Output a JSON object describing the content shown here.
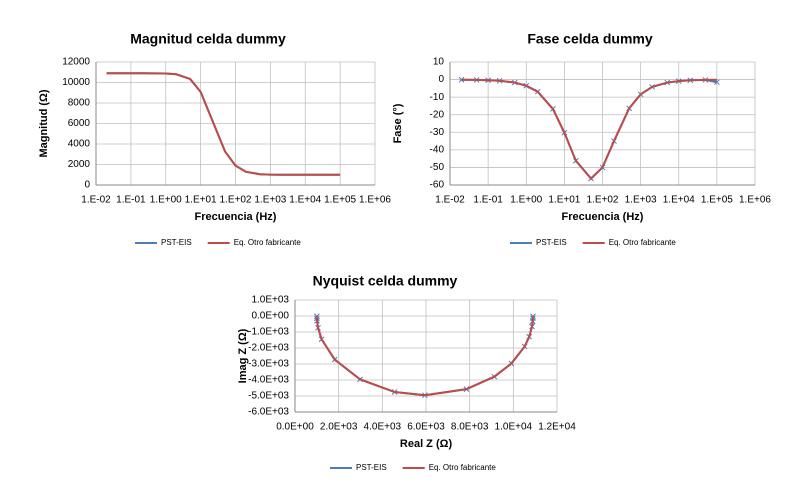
{
  "chart_data": [
    {
      "type": "line",
      "title": "Magnitud celda dummy",
      "xlabel": "Frecuencia (Hz)",
      "ylabel": "Magnitud (Ω)",
      "xscale": "log",
      "grid": true,
      "legend": "bottom",
      "x": [
        0.02,
        0.05,
        0.1,
        0.2,
        0.5,
        1,
        2,
        5,
        10,
        20,
        50,
        100,
        200,
        500,
        1000,
        2000,
        5000,
        10000,
        20000,
        50000,
        100000
      ],
      "series": [
        {
          "name": "PST-EIS",
          "color": "#4a7ebb",
          "values": [
            10900,
            10900,
            10900,
            10898,
            10894,
            10876,
            10805,
            10345,
            9086,
            6589,
            3275,
            1895,
            1288,
            1052,
            1013,
            1003,
            1000,
            1000,
            1000,
            1000,
            1000
          ]
        },
        {
          "name": "Eq. Otro fabricante",
          "color": "#be4b48",
          "values": [
            10900,
            10900,
            10900,
            10898,
            10894,
            10876,
            10805,
            10345,
            9086,
            6589,
            3275,
            1895,
            1288,
            1052,
            1013,
            1003,
            1000,
            1000,
            1000,
            1000,
            1000
          ]
        }
      ],
      "xlim": [
        0.01,
        1000000
      ],
      "xticks": [
        {
          "value": 0.01,
          "label": "1.E-02"
        },
        {
          "value": 0.1,
          "label": "1.E-01"
        },
        {
          "value": 1,
          "label": "1.E+00"
        },
        {
          "value": 10,
          "label": "1.E+01"
        },
        {
          "value": 100,
          "label": "1.E+02"
        },
        {
          "value": 1000,
          "label": "1.E+03"
        },
        {
          "value": 10000,
          "label": "1.E+04"
        },
        {
          "value": 100000,
          "label": "1.E+05"
        },
        {
          "value": 1000000,
          "label": "1.E+06"
        }
      ],
      "ylim": [
        0,
        12000
      ],
      "yticks": [
        0,
        2000,
        4000,
        6000,
        8000,
        10000,
        12000
      ]
    },
    {
      "type": "line",
      "title": "Fase celda dummy",
      "xlabel": "Frecuencia (Hz)",
      "ylabel": "Fase (°)",
      "xscale": "log",
      "grid": true,
      "legend": "bottom",
      "x": [
        0.02,
        0.05,
        0.1,
        0.2,
        0.5,
        1,
        2,
        5,
        10,
        20,
        50,
        100,
        200,
        500,
        1000,
        2000,
        5000,
        10000,
        20000,
        50000,
        100000
      ],
      "series": [
        {
          "name": "PST-EIS",
          "color": "#4a7ebb",
          "marker": "x",
          "values": [
            -0.1,
            -0.2,
            -0.4,
            -0.7,
            -1.7,
            -3.5,
            -6.9,
            -16.7,
            -30.2,
            -46.2,
            -56.3,
            -50,
            -35,
            -16.4,
            -8.4,
            -4.2,
            -1.7,
            -0.9,
            -0.4,
            -0.2,
            -1.5
          ]
        },
        {
          "name": "Eq. Otro fabricante",
          "color": "#be4b48",
          "values": [
            -0.1,
            -0.2,
            -0.4,
            -0.7,
            -1.7,
            -3.5,
            -6.9,
            -16.7,
            -30.2,
            -46.2,
            -56.3,
            -50,
            -35,
            -16.4,
            -8.4,
            -4.2,
            -1.7,
            -0.9,
            -0.4,
            -0.2,
            -0.1
          ]
        }
      ],
      "xlim": [
        0.01,
        1000000
      ],
      "xticks": [
        {
          "value": 0.01,
          "label": "1.E-02"
        },
        {
          "value": 0.1,
          "label": "1.E-01"
        },
        {
          "value": 1,
          "label": "1.E+00"
        },
        {
          "value": 10,
          "label": "1.E+01"
        },
        {
          "value": 100,
          "label": "1.E+02"
        },
        {
          "value": 1000,
          "label": "1.E+03"
        },
        {
          "value": 10000,
          "label": "1.E+04"
        },
        {
          "value": 100000,
          "label": "1.E+05"
        },
        {
          "value": 1000000,
          "label": "1.E+06"
        }
      ],
      "ylim": [
        -60,
        10
      ],
      "yticks": [
        -60,
        -50,
        -40,
        -30,
        -20,
        -10,
        0,
        10
      ]
    },
    {
      "type": "line",
      "title": "Nyquist celda dummy",
      "xlabel": "Real Z (Ω)",
      "ylabel": "Imag Z (Ω)",
      "grid": true,
      "legend": "bottom",
      "x": [
        10900,
        10898,
        10889,
        10856,
        10727,
        10519,
        9910,
        9128,
        7854,
        5950,
        4564,
        2980,
        1817,
        1218,
        1055,
        1009,
        1002,
        1000
      ],
      "series": [
        {
          "name": "PST-EIS",
          "color": "#4a7ebb",
          "marker": "x",
          "values": [
            -13,
            -132,
            -330,
            -657,
            -1297,
            -1904,
            -2970,
            -3794,
            -4569,
            -4950,
            -4752,
            -3960,
            -2725,
            -1452,
            -738,
            -297,
            -149,
            -15
          ]
        },
        {
          "name": "Eq. Otro fabricante",
          "color": "#be4b48",
          "values": [
            -13,
            -132,
            -330,
            -657,
            -1297,
            -1904,
            -2970,
            -3794,
            -4569,
            -4950,
            -4752,
            -3960,
            -2725,
            -1452,
            -738,
            -297,
            -149,
            -15
          ]
        }
      ],
      "xlim": [
        0,
        12000
      ],
      "xticks": [
        {
          "value": 0,
          "label": "0.0E+00"
        },
        {
          "value": 2000,
          "label": "2.0E+03"
        },
        {
          "value": 4000,
          "label": "4.0E+03"
        },
        {
          "value": 6000,
          "label": "6.0E+03"
        },
        {
          "value": 8000,
          "label": "8.0E+03"
        },
        {
          "value": 10000,
          "label": "1.0E+04"
        },
        {
          "value": 12000,
          "label": "1.2E+04"
        }
      ],
      "ylim": [
        -6000,
        1000
      ],
      "yticks": [
        {
          "value": -6000,
          "label": "-6.0E+03"
        },
        {
          "value": -5000,
          "label": "-5.0E+03"
        },
        {
          "value": -4000,
          "label": "-4.0E+03"
        },
        {
          "value": -3000,
          "label": "-3.0E+03"
        },
        {
          "value": -2000,
          "label": "-2.0E+03"
        },
        {
          "value": -1000,
          "label": "-1.0E+03"
        },
        {
          "value": 0,
          "label": "0.0E+00"
        },
        {
          "value": 1000,
          "label": "1.0E+03"
        }
      ]
    }
  ]
}
